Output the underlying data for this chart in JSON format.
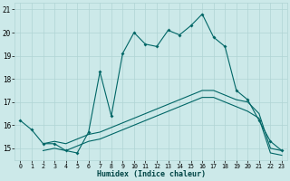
{
  "xlabel": "Humidex (Indice chaleur)",
  "bg_color": "#cce9e9",
  "line_color": "#006666",
  "grid_color": "#b0d4d4",
  "x_ticks": [
    0,
    1,
    2,
    3,
    4,
    5,
    6,
    7,
    8,
    9,
    10,
    11,
    12,
    13,
    14,
    15,
    16,
    17,
    18,
    19,
    20,
    21,
    22,
    23
  ],
  "y_ticks": [
    15,
    16,
    17,
    18,
    19,
    20,
    21
  ],
  "ylim": [
    14.5,
    21.3
  ],
  "xlim": [
    -0.5,
    23.5
  ],
  "curve1_x": [
    0,
    1,
    2,
    3,
    4,
    5,
    6,
    7,
    8,
    9,
    10,
    11,
    12,
    13,
    14,
    15,
    16,
    17,
    18,
    19,
    20,
    21,
    22,
    23
  ],
  "curve1_y": [
    16.2,
    15.8,
    15.2,
    15.2,
    14.9,
    14.8,
    15.7,
    18.3,
    16.4,
    19.1,
    20.0,
    19.5,
    19.4,
    20.1,
    19.9,
    20.3,
    20.8,
    19.8,
    19.4,
    17.5,
    17.1,
    16.2,
    15.3,
    14.9
  ],
  "curve2_x": [
    2,
    3,
    4,
    5,
    6,
    7,
    8,
    9,
    10,
    11,
    12,
    13,
    14,
    15,
    16,
    17,
    18,
    19,
    20,
    21,
    22,
    23
  ],
  "curve2_y": [
    15.2,
    15.3,
    15.2,
    15.4,
    15.6,
    15.7,
    15.9,
    16.1,
    16.3,
    16.5,
    16.7,
    16.9,
    17.1,
    17.3,
    17.5,
    17.5,
    17.3,
    17.1,
    17.0,
    16.5,
    15.0,
    14.9
  ],
  "curve3_x": [
    2,
    3,
    4,
    5,
    6,
    7,
    8,
    9,
    10,
    11,
    12,
    13,
    14,
    15,
    16,
    17,
    18,
    19,
    20,
    21,
    22,
    23
  ],
  "curve3_y": [
    14.9,
    15.0,
    14.9,
    15.1,
    15.3,
    15.4,
    15.6,
    15.8,
    16.0,
    16.2,
    16.4,
    16.6,
    16.8,
    17.0,
    17.2,
    17.2,
    17.0,
    16.8,
    16.6,
    16.3,
    14.8,
    14.7
  ]
}
